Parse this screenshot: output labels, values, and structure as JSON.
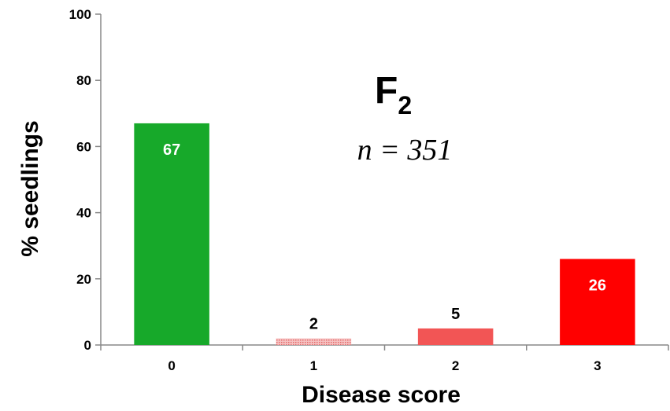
{
  "chart_data": {
    "type": "bar",
    "title": "F",
    "title_subscript": "2",
    "annotation": "n = 351",
    "xlabel": "Disease score",
    "ylabel": "% seedlings",
    "categories": [
      "0",
      "1",
      "2",
      "3"
    ],
    "values": [
      67,
      2,
      5,
      26
    ],
    "data_labels": [
      "67",
      "2",
      "5",
      "26"
    ],
    "ylim": [
      0,
      100
    ],
    "yticks": [
      "0",
      "20",
      "40",
      "60",
      "80",
      "100"
    ],
    "grid": false,
    "legend": "none",
    "bar_colors": [
      "#17a92a",
      "#f2a7a7",
      "#f25555",
      "#ff0000"
    ],
    "label_colors": [
      "#ffffff",
      "#000000",
      "#000000",
      "#ffffff"
    ],
    "label_placement": [
      "inside",
      "outside",
      "outside",
      "inside"
    ]
  }
}
